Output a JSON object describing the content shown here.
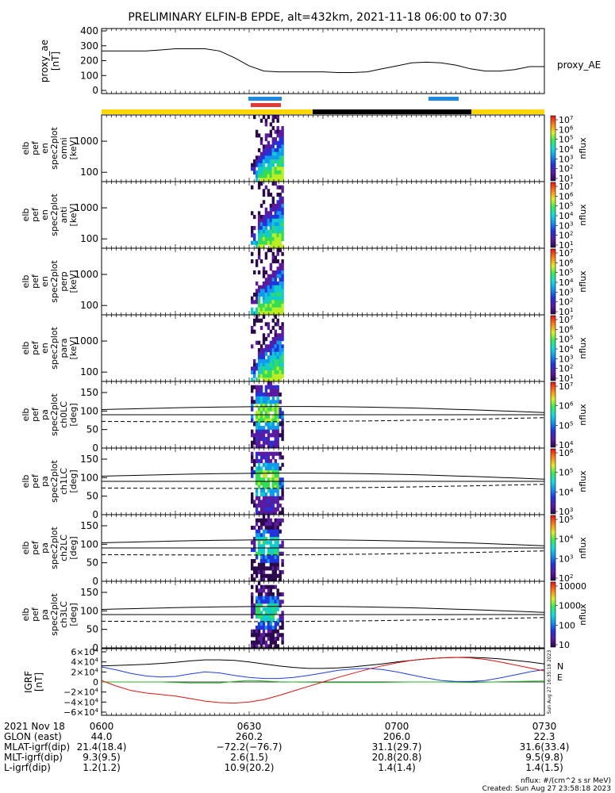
{
  "title": "PRELIMINARY ELFIN-B EPDE, alt=432km, 2021-11-18 06:00 to 07:30",
  "colors": {
    "ae_line": "#000000",
    "science_bar_blue": "#1e88e5",
    "science_bar_red": "#e53935",
    "orbit_yellow": "#ffd600",
    "orbit_black": "#000000",
    "bx_blue": "#1f3fd8",
    "by_green": "#22bb22",
    "bz_red": "#dd1111"
  },
  "chart_data": [
    {
      "type": "line",
      "panel": "proxy_ae",
      "ylabel": [
        "proxy_ae",
        "[nT]"
      ],
      "series_label": "proxy_AE",
      "ylim": [
        0,
        400
      ],
      "yticks": [
        "400",
        "300",
        "200",
        "100",
        "0"
      ],
      "x_hours": [
        6.0,
        6.05,
        6.1,
        6.15,
        6.2,
        6.25,
        6.3,
        6.35,
        6.4,
        6.45,
        6.5,
        6.55,
        6.6,
        6.65,
        6.7,
        6.75,
        6.8,
        6.85,
        6.9,
        6.95,
        7.0,
        7.05,
        7.1,
        7.15,
        7.2,
        7.25,
        7.3,
        7.35,
        7.4,
        7.45,
        7.5
      ],
      "values": [
        265,
        265,
        265,
        265,
        272,
        280,
        280,
        280,
        265,
        220,
        165,
        130,
        125,
        125,
        125,
        125,
        120,
        120,
        125,
        145,
        165,
        185,
        190,
        185,
        170,
        145,
        130,
        130,
        140,
        160,
        160
      ]
    },
    {
      "type": "heatmap",
      "panel": "omni",
      "ylabel": [
        "elb",
        "pef",
        "en",
        "spec2plot",
        "omni",
        "[keV]"
      ],
      "yscale": "log",
      "ylim": [
        50,
        7000
      ],
      "yticks": [
        "1000",
        "100"
      ],
      "zlabel": "nflux",
      "zticks": [
        "10^7",
        "10^6",
        "10^5",
        "10^4",
        "10^3",
        "10^2",
        "10^1"
      ]
    },
    {
      "type": "heatmap",
      "panel": "anti",
      "ylabel": [
        "elb",
        "pef",
        "en",
        "spec2plot",
        "anti",
        "[keV]"
      ],
      "yscale": "log",
      "ylim": [
        50,
        7000
      ],
      "yticks": [
        "1000",
        "100"
      ],
      "zlabel": "nflux",
      "zticks": [
        "10^7",
        "10^6",
        "10^5",
        "10^4",
        "10^3",
        "10^2",
        "10^1"
      ]
    },
    {
      "type": "heatmap",
      "panel": "perp",
      "ylabel": [
        "elb",
        "pef",
        "en",
        "spec2plot",
        "perp",
        "[keV]"
      ],
      "yscale": "log",
      "ylim": [
        50,
        7000
      ],
      "yticks": [
        "1000",
        "100"
      ],
      "zlabel": "nflux",
      "zticks": [
        "10^7",
        "10^6",
        "10^5",
        "10^4",
        "10^3",
        "10^2",
        "10^1"
      ]
    },
    {
      "type": "heatmap",
      "panel": "para",
      "ylabel": [
        "elb",
        "pef",
        "en",
        "spec2plot",
        "para",
        "[keV]"
      ],
      "yscale": "log",
      "ylim": [
        50,
        7000
      ],
      "yticks": [
        "1000",
        "100"
      ],
      "zlabel": "nflux",
      "zticks": [
        "10^7",
        "10^6",
        "10^5",
        "10^4",
        "10^3",
        "10^2",
        "10^1"
      ]
    },
    {
      "type": "heatmap",
      "panel": "ch0LC",
      "ylabel": [
        "elb",
        "pef",
        "pa",
        "spec2plot",
        "ch0LC",
        "[deg]"
      ],
      "ylim": [
        0,
        180
      ],
      "yticks": [
        "150",
        "100",
        "50",
        "0"
      ],
      "zlabel": "nflux",
      "zticks": [
        "10^7",
        "10^6",
        "10^5",
        "10^4"
      ]
    },
    {
      "type": "heatmap",
      "panel": "ch1LC",
      "ylabel": [
        "elb",
        "pef",
        "pa",
        "spec2plot",
        "ch1LC",
        "[deg]"
      ],
      "ylim": [
        0,
        180
      ],
      "yticks": [
        "150",
        "100",
        "50",
        "0"
      ],
      "zlabel": "nflux",
      "zticks": [
        "10^6",
        "10^5",
        "10^4",
        "10^3"
      ]
    },
    {
      "type": "heatmap",
      "panel": "ch2LC",
      "ylabel": [
        "elb",
        "pef",
        "pa",
        "spec2plot",
        "ch2LC",
        "[deg]"
      ],
      "ylim": [
        0,
        180
      ],
      "yticks": [
        "150",
        "100",
        "50",
        "0"
      ],
      "zlabel": "nflux",
      "zticks": [
        "10^5",
        "10^4",
        "10^3",
        "10^2"
      ]
    },
    {
      "type": "heatmap",
      "panel": "ch3LC",
      "ylabel": [
        "elb",
        "pef",
        "pa",
        "spec2plot",
        "ch3LC",
        "[deg]"
      ],
      "ylim": [
        0,
        180
      ],
      "yticks": [
        "150",
        "100",
        "50",
        "0"
      ],
      "zlabel": "nflux",
      "zticks": [
        "10000",
        "1000",
        "100",
        "10"
      ]
    },
    {
      "type": "line",
      "panel": "IGRF",
      "ylabel": [
        "IGRF",
        "[nT]"
      ],
      "ylim": [
        -60000,
        60000
      ],
      "yticks": [
        "6×10^4",
        "4×10^4",
        "2×10^4",
        "0",
        "−2×10^4",
        "−4×10^4",
        "−6×10^4"
      ],
      "legend": [
        "N",
        "E"
      ],
      "x_hours": [
        6.0,
        6.05,
        6.1,
        6.15,
        6.2,
        6.25,
        6.3,
        6.35,
        6.4,
        6.45,
        6.5,
        6.55,
        6.6,
        6.65,
        6.7,
        6.75,
        6.8,
        6.85,
        6.9,
        6.95,
        7.0,
        7.05,
        7.1,
        7.15,
        7.2,
        7.25,
        7.3,
        7.35,
        7.4,
        7.45,
        7.5
      ],
      "series": [
        {
          "name": "",
          "color": "#000000",
          "values": [
            32000,
            33000,
            34000,
            35000,
            37000,
            39000,
            42000,
            44000,
            44000,
            43000,
            40000,
            36000,
            32000,
            29000,
            27000,
            27000,
            28000,
            30000,
            33000,
            36000,
            40000,
            43000,
            46000,
            48000,
            49000,
            49000,
            48000,
            46000,
            43000,
            40000,
            36000
          ]
        },
        {
          "name": "",
          "color": "#1f3fd8",
          "values": [
            30000,
            24000,
            17000,
            12000,
            10000,
            11000,
            16000,
            20000,
            18000,
            13000,
            9000,
            7000,
            7000,
            9000,
            13000,
            18000,
            23000,
            26000,
            27000,
            25000,
            20000,
            14000,
            8000,
            3000,
            1000,
            1000,
            3000,
            8000,
            14000,
            20000,
            25000
          ]
        },
        {
          "name": "E",
          "color": "#22bb22",
          "values": [
            0,
            0,
            0,
            0,
            0,
            -1000,
            -2000,
            -2000,
            -2000,
            1000,
            3000,
            2000,
            500,
            0,
            -500,
            -1000,
            -1000,
            -1000,
            -1000,
            -1000,
            -500,
            0,
            0,
            0,
            -500,
            -1000,
            -500,
            500,
            1000,
            1500,
            2000
          ]
        },
        {
          "name": "N",
          "color": "#dd1111",
          "values": [
            3000,
            -8000,
            -17000,
            -22000,
            -25000,
            -28000,
            -33000,
            -38000,
            -41000,
            -42000,
            -40000,
            -35000,
            -27000,
            -18000,
            -9000,
            0,
            9000,
            17000,
            25000,
            32000,
            38000,
            43000,
            46000,
            48000,
            49000,
            48000,
            45000,
            40000,
            34000,
            28000,
            22000
          ]
        }
      ]
    }
  ],
  "xaxis": {
    "date_label": "2021 Nov 18",
    "ticks": [
      "0600",
      "0630",
      "0700",
      "0730"
    ],
    "rows": [
      {
        "label": "GLON (east)",
        "values": [
          "44.0",
          "260.2",
          "206.0",
          "22.3"
        ]
      },
      {
        "label": "MLAT-igrf(dip)",
        "values": [
          "21.4(18.4)",
          "−72.2(−76.7)",
          "31.1(29.7)",
          "31.6(33.4)"
        ]
      },
      {
        "label": "MLT-igrf(dip)",
        "values": [
          "9.3(9.5)",
          "2.6(1.5)",
          "20.8(20.8)",
          "9.5(9.8)"
        ]
      },
      {
        "label": "L-igrf(dip)",
        "values": [
          "1.2(1.2)",
          "10.9(20.2)",
          "1.4(1.4)",
          "1.4(1.5)"
        ]
      }
    ]
  },
  "footer": {
    "units": "nflux: #/(cm^2 s sr MeV)",
    "created": "Created: Sun Aug 27 23:58:18 2023",
    "side_stamp": "Sun Aug 27 16:35:18 2023"
  }
}
